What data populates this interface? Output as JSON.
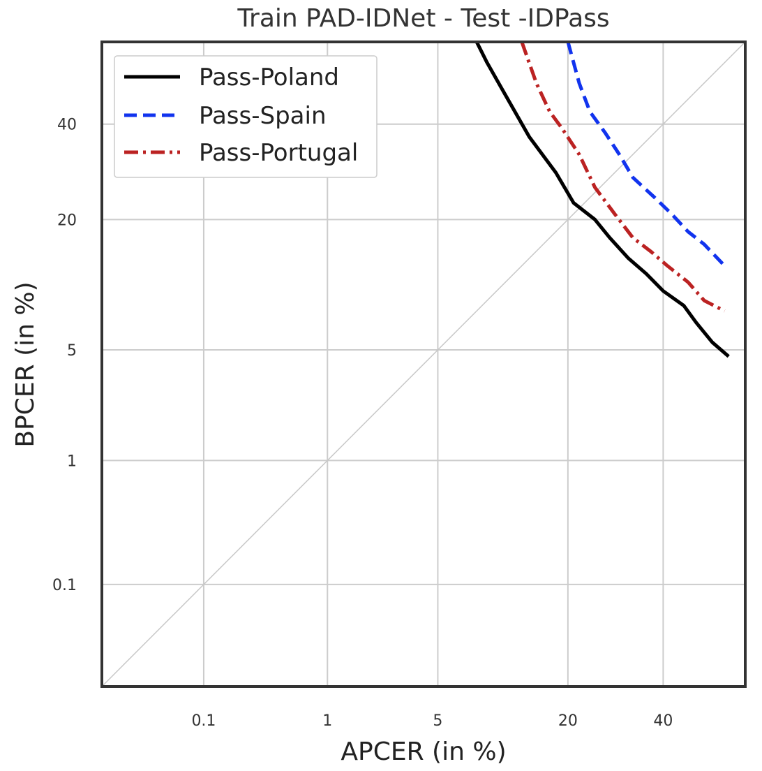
{
  "chart_data": {
    "type": "line",
    "title": "Train PAD-IDNet - Test -IDPass",
    "xlabel": "APCER (in %)",
    "ylabel": "BPCER (in %)",
    "scale": "probit",
    "xlim": [
      0.01,
      60
    ],
    "ylim": [
      0.01,
      60
    ],
    "xticks": [
      {
        "value": 0.1,
        "label": "0.1"
      },
      {
        "value": 1,
        "label": "1"
      },
      {
        "value": 5,
        "label": "5"
      },
      {
        "value": 20,
        "label": "20"
      },
      {
        "value": 40,
        "label": "40"
      }
    ],
    "yticks": [
      {
        "value": 0.1,
        "label": "0.1"
      },
      {
        "value": 1,
        "label": "1"
      },
      {
        "value": 5,
        "label": "5"
      },
      {
        "value": 20,
        "label": "20"
      },
      {
        "value": 40,
        "label": "40"
      }
    ],
    "grid": true,
    "diagonal": true,
    "legend_position": "top-left",
    "series": [
      {
        "name": "Pass-Poland",
        "color": "#000000",
        "dash": "solid",
        "points": [
          [
            8,
            60
          ],
          [
            9,
            55
          ],
          [
            11,
            47
          ],
          [
            14,
            37
          ],
          [
            18,
            29
          ],
          [
            21,
            23
          ],
          [
            25,
            20
          ],
          [
            28,
            17
          ],
          [
            32,
            14
          ],
          [
            36,
            12
          ],
          [
            40,
            10
          ],
          [
            45,
            8.5
          ],
          [
            48,
            7
          ],
          [
            52,
            5.5
          ],
          [
            56,
            4.6
          ]
        ]
      },
      {
        "name": "Pass-Spain",
        "color": "#1133ee",
        "dash": "dashed",
        "points": [
          [
            20,
            60
          ],
          [
            22,
            50
          ],
          [
            24,
            43
          ],
          [
            27,
            38
          ],
          [
            30,
            33
          ],
          [
            33,
            28
          ],
          [
            38,
            24
          ],
          [
            42,
            21
          ],
          [
            46,
            18
          ],
          [
            50,
            16
          ],
          [
            55,
            13
          ]
        ]
      },
      {
        "name": "Pass-Portugal",
        "color": "#bb2222",
        "dash": "dashdot",
        "points": [
          [
            13,
            60
          ],
          [
            15,
            50
          ],
          [
            17,
            43
          ],
          [
            19,
            39
          ],
          [
            22,
            33
          ],
          [
            25,
            26
          ],
          [
            29,
            21
          ],
          [
            33,
            17
          ],
          [
            37,
            15
          ],
          [
            41,
            13
          ],
          [
            46,
            11
          ],
          [
            50,
            9
          ],
          [
            55,
            8
          ]
        ]
      }
    ]
  }
}
